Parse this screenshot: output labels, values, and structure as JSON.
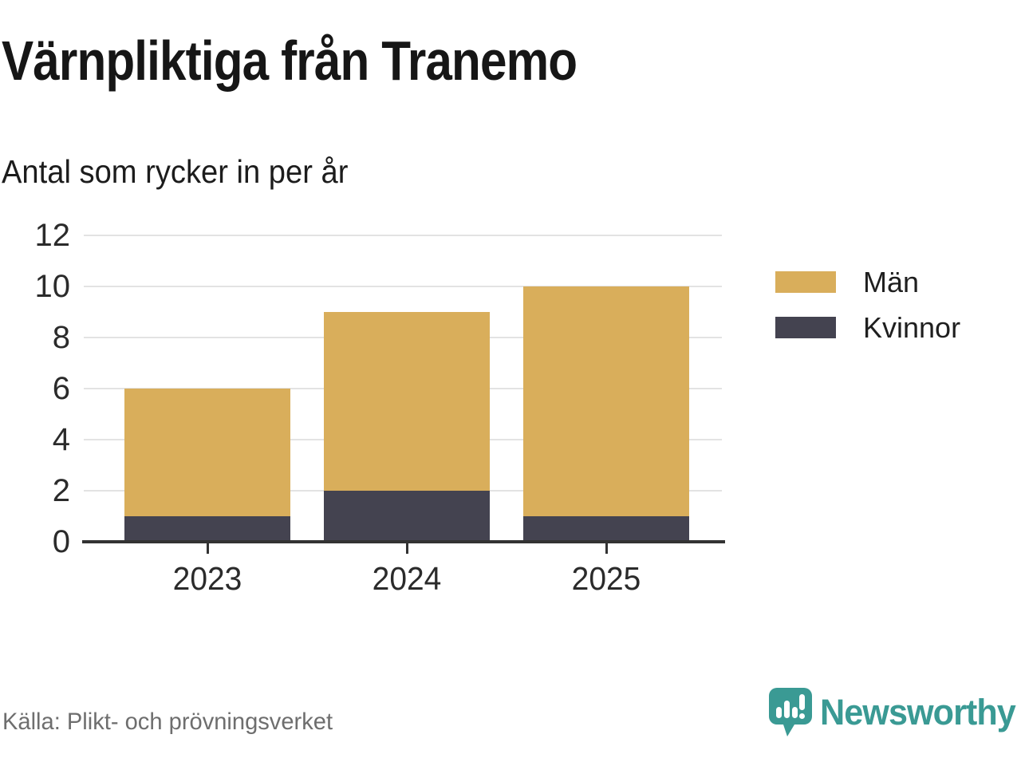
{
  "header": {
    "title": "Värnpliktiga från Tranemo",
    "subtitle": "Antal som rycker in per år"
  },
  "chart_data": {
    "type": "bar",
    "stacked": true,
    "title": "Värnpliktiga från Tranemo",
    "subtitle": "Antal som rycker in per år",
    "categories": [
      "2023",
      "2024",
      "2025"
    ],
    "series": [
      {
        "name": "Kvinnor",
        "color": "#444350",
        "values": [
          1,
          2,
          1
        ]
      },
      {
        "name": "Män",
        "color": "#d9ae5b",
        "values": [
          5,
          7,
          9
        ]
      }
    ],
    "stack_totals": [
      6,
      9,
      10
    ],
    "xlabel": "",
    "ylabel": "",
    "ylim": [
      0,
      12
    ],
    "y_ticks": [
      0,
      2,
      4,
      6,
      8,
      10,
      12
    ],
    "grid": true,
    "legend_position": "right"
  },
  "legend": {
    "items": [
      {
        "label": "Män",
        "color": "#d9ae5b"
      },
      {
        "label": "Kvinnor",
        "color": "#444350"
      }
    ]
  },
  "footer": {
    "source": "Källa: Plikt- och prövningsverket",
    "brand": "Newsworthy"
  },
  "colors": {
    "men": "#d9ae5b",
    "women": "#444350",
    "axis": "#333333",
    "grid": "#e3e3e3",
    "brand_teal": "#3a9a94",
    "source_gray": "#6e6e6e"
  }
}
